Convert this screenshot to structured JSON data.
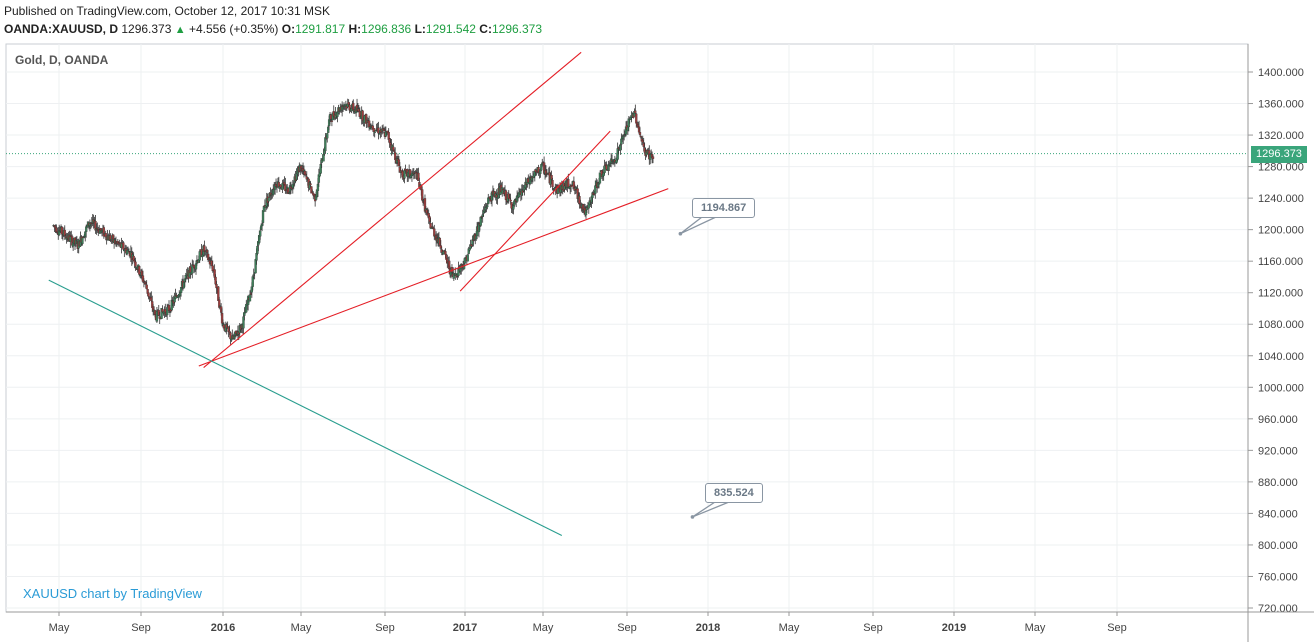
{
  "header": {
    "published": "Published on TradingView.com, October 12, 2017 10:31 MSK",
    "symbol": "OANDA:XAUUSD, D",
    "last": "1296.373",
    "change": "+4.556 (+0.35%)",
    "open_label": "O:",
    "open": "1291.817",
    "high_label": "H:",
    "high": "1296.836",
    "low_label": "L:",
    "low": "1291.542",
    "close_label": "C:",
    "close": "1296.373",
    "up_icon": "triangle-up-icon"
  },
  "chart_data": {
    "type": "candlestick",
    "title": "Gold, D, OANDA",
    "watermark": "XAUUSD chart by TradingView",
    "ylim": [
      706,
      1430
    ],
    "y_ticks": [
      720,
      760,
      800,
      840,
      880,
      920,
      960,
      1000,
      1040,
      1080,
      1120,
      1160,
      1200,
      1240,
      1280,
      1320,
      1360,
      1400
    ],
    "x_ticks": [
      "May",
      "Sep",
      "2016",
      "May",
      "Sep",
      "2017",
      "May",
      "Sep",
      "2018",
      "May",
      "Sep",
      "2019",
      "May",
      "Sep"
    ],
    "x_tick_positions": [
      59,
      141,
      223,
      301,
      385,
      465,
      543,
      627,
      708,
      789,
      873,
      954,
      1035,
      1117
    ],
    "current_price": "1296.373",
    "price_path": [
      [
        2015.3,
        1205
      ],
      [
        2015.4,
        1180
      ],
      [
        2015.45,
        1210
      ],
      [
        2015.55,
        1185
      ],
      [
        2015.62,
        1170
      ],
      [
        2015.68,
        1130
      ],
      [
        2015.72,
        1090
      ],
      [
        2015.78,
        1100
      ],
      [
        2015.85,
        1140
      ],
      [
        2015.92,
        1175
      ],
      [
        2015.96,
        1150
      ],
      [
        2016.0,
        1080
      ],
      [
        2016.04,
        1060
      ],
      [
        2016.08,
        1080
      ],
      [
        2016.12,
        1130
      ],
      [
        2016.17,
        1230
      ],
      [
        2016.22,
        1260
      ],
      [
        2016.27,
        1250
      ],
      [
        2016.32,
        1280
      ],
      [
        2016.38,
        1240
      ],
      [
        2016.44,
        1340
      ],
      [
        2016.5,
        1360
      ],
      [
        2016.56,
        1350
      ],
      [
        2016.62,
        1330
      ],
      [
        2016.68,
        1320
      ],
      [
        2016.74,
        1270
      ],
      [
        2016.8,
        1270
      ],
      [
        2016.85,
        1210
      ],
      [
        2016.9,
        1180
      ],
      [
        2016.95,
        1140
      ],
      [
        2017.0,
        1160
      ],
      [
        2017.05,
        1200
      ],
      [
        2017.1,
        1240
      ],
      [
        2017.15,
        1250
      ],
      [
        2017.2,
        1230
      ],
      [
        2017.26,
        1260
      ],
      [
        2017.32,
        1280
      ],
      [
        2017.38,
        1250
      ],
      [
        2017.44,
        1260
      ],
      [
        2017.5,
        1220
      ],
      [
        2017.56,
        1270
      ],
      [
        2017.62,
        1290
      ],
      [
        2017.67,
        1330
      ],
      [
        2017.7,
        1350
      ],
      [
        2017.74,
        1300
      ],
      [
        2017.78,
        1290
      ]
    ],
    "trendlines": [
      {
        "color": "#e41e26",
        "from": [
          2015.9,
          1027
        ],
        "to": [
          2017.84,
          1252
        ]
      },
      {
        "color": "#e41e26",
        "from": [
          2015.92,
          1025
        ],
        "to": [
          2017.48,
          1425
        ]
      },
      {
        "color": "#e41e26",
        "from": [
          2016.98,
          1122
        ],
        "to": [
          2017.6,
          1325
        ]
      },
      {
        "color": "#2a9e8f",
        "from": [
          2015.28,
          1136
        ],
        "to": [
          2017.4,
          812
        ]
      }
    ],
    "callouts": [
      {
        "label": "1194.867",
        "value": 1194.867
      },
      {
        "label": "835.524",
        "value": 835.524
      }
    ]
  }
}
